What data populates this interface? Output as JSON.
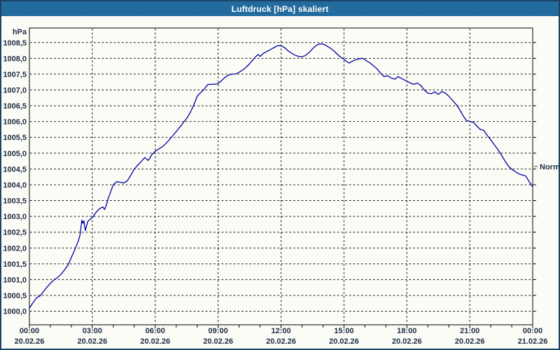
{
  "window": {
    "title": "Luftdruck [hPa] skaliert"
  },
  "colors": {
    "frame_border": "#1C4468",
    "titlebar_bg": "#2673A8",
    "titlebar_dot": "#1E5E8C",
    "titlebar_text": "#FFFFFF",
    "background": "#FCFCF7",
    "plot_border": "#000000",
    "gridline": "#000000",
    "line": "#0000A0",
    "label_text": "#1E2C44",
    "annotation_text": "#333333"
  },
  "chart_data": {
    "type": "line",
    "title": "Luftdruck [hPa] skaliert",
    "ylabel": "hPa",
    "xlabel": "",
    "grid": "dashed",
    "legend_position": "none",
    "ylim": [
      999.57,
      1008.96
    ],
    "x_minutes_range": [
      0,
      1440
    ],
    "y_ticks": [
      {
        "value": 1000.0,
        "label": "1000,0"
      },
      {
        "value": 1000.5,
        "label": "1000,5"
      },
      {
        "value": 1001.0,
        "label": "1001,0"
      },
      {
        "value": 1001.5,
        "label": "1001,5"
      },
      {
        "value": 1002.0,
        "label": "1002,0"
      },
      {
        "value": 1002.5,
        "label": "1002,5"
      },
      {
        "value": 1003.0,
        "label": "1003,0"
      },
      {
        "value": 1003.5,
        "label": "1003,5"
      },
      {
        "value": 1004.0,
        "label": "1004,0"
      },
      {
        "value": 1004.5,
        "label": "1004,5"
      },
      {
        "value": 1005.0,
        "label": "1005,0"
      },
      {
        "value": 1005.5,
        "label": "1005,5"
      },
      {
        "value": 1006.0,
        "label": "1006,0"
      },
      {
        "value": 1006.5,
        "label": "1006,5"
      },
      {
        "value": 1007.0,
        "label": "1007,0"
      },
      {
        "value": 1007.5,
        "label": "1007,5"
      },
      {
        "value": 1008.0,
        "label": "1008,0"
      },
      {
        "value": 1008.5,
        "label": "1008,5"
      }
    ],
    "x_ticks": [
      {
        "hour": 0,
        "time": "00:00",
        "date": "20.02.26"
      },
      {
        "hour": 3,
        "time": "03:00",
        "date": "20.02.26"
      },
      {
        "hour": 6,
        "time": "06:00",
        "date": "20.02.26"
      },
      {
        "hour": 9,
        "time": "09:00",
        "date": "20.02.26"
      },
      {
        "hour": 12,
        "time": "12:00",
        "date": "20.02.26"
      },
      {
        "hour": 15,
        "time": "15:00",
        "date": "20.02.26"
      },
      {
        "hour": 18,
        "time": "18:00",
        "date": "20.02.26"
      },
      {
        "hour": 21,
        "time": "21:00",
        "date": "20.02.26"
      },
      {
        "hour": 24,
        "time": "00:00",
        "date": "21.02.26"
      }
    ],
    "x_minor_tick_every_hours": 1,
    "annotations": [
      {
        "label": "Normal",
        "value": 1004.58,
        "side": "right"
      }
    ],
    "series": [
      {
        "name": "Luftdruck",
        "points_minutes_hpa": [
          [
            0,
            1000.1
          ],
          [
            10,
            1000.26
          ],
          [
            20,
            1000.42
          ],
          [
            30,
            1000.48
          ],
          [
            40,
            1000.62
          ],
          [
            50,
            1000.76
          ],
          [
            60,
            1000.88
          ],
          [
            70,
            1000.99
          ],
          [
            80,
            1001.06
          ],
          [
            90,
            1001.16
          ],
          [
            100,
            1001.3
          ],
          [
            110,
            1001.45
          ],
          [
            120,
            1001.7
          ],
          [
            130,
            1001.95
          ],
          [
            140,
            1002.22
          ],
          [
            145,
            1002.42
          ],
          [
            150,
            1002.88
          ],
          [
            153,
            1002.78
          ],
          [
            156,
            1002.86
          ],
          [
            160,
            1002.55
          ],
          [
            167,
            1002.84
          ],
          [
            175,
            1002.92
          ],
          [
            180,
            1002.96
          ],
          [
            190,
            1003.12
          ],
          [
            200,
            1003.24
          ],
          [
            210,
            1003.3
          ],
          [
            215,
            1003.22
          ],
          [
            220,
            1003.35
          ],
          [
            225,
            1003.55
          ],
          [
            235,
            1003.85
          ],
          [
            240,
            1004.0
          ],
          [
            250,
            1004.1
          ],
          [
            260,
            1004.08
          ],
          [
            270,
            1004.06
          ],
          [
            280,
            1004.12
          ],
          [
            290,
            1004.3
          ],
          [
            300,
            1004.5
          ],
          [
            310,
            1004.62
          ],
          [
            320,
            1004.74
          ],
          [
            330,
            1004.86
          ],
          [
            340,
            1004.77
          ],
          [
            350,
            1004.95
          ],
          [
            360,
            1005.06
          ],
          [
            370,
            1005.13
          ],
          [
            380,
            1005.2
          ],
          [
            390,
            1005.3
          ],
          [
            400,
            1005.42
          ],
          [
            410,
            1005.55
          ],
          [
            420,
            1005.68
          ],
          [
            430,
            1005.82
          ],
          [
            440,
            1005.96
          ],
          [
            450,
            1006.1
          ],
          [
            460,
            1006.28
          ],
          [
            470,
            1006.52
          ],
          [
            480,
            1006.8
          ],
          [
            490,
            1006.92
          ],
          [
            500,
            1007.02
          ],
          [
            505,
            1007.1
          ],
          [
            510,
            1007.17
          ],
          [
            520,
            1007.18
          ],
          [
            530,
            1007.18
          ],
          [
            540,
            1007.2
          ],
          [
            550,
            1007.3
          ],
          [
            560,
            1007.4
          ],
          [
            570,
            1007.47
          ],
          [
            580,
            1007.5
          ],
          [
            590,
            1007.5
          ],
          [
            600,
            1007.56
          ],
          [
            610,
            1007.63
          ],
          [
            620,
            1007.72
          ],
          [
            630,
            1007.83
          ],
          [
            640,
            1007.96
          ],
          [
            650,
            1008.08
          ],
          [
            655,
            1008.12
          ],
          [
            660,
            1008.06
          ],
          [
            670,
            1008.16
          ],
          [
            680,
            1008.22
          ],
          [
            690,
            1008.28
          ],
          [
            700,
            1008.34
          ],
          [
            710,
            1008.4
          ],
          [
            720,
            1008.4
          ],
          [
            730,
            1008.34
          ],
          [
            740,
            1008.24
          ],
          [
            750,
            1008.16
          ],
          [
            760,
            1008.1
          ],
          [
            770,
            1008.06
          ],
          [
            780,
            1008.05
          ],
          [
            790,
            1008.09
          ],
          [
            800,
            1008.18
          ],
          [
            810,
            1008.3
          ],
          [
            820,
            1008.4
          ],
          [
            830,
            1008.46
          ],
          [
            840,
            1008.45
          ],
          [
            850,
            1008.4
          ],
          [
            860,
            1008.33
          ],
          [
            870,
            1008.25
          ],
          [
            880,
            1008.14
          ],
          [
            890,
            1008.04
          ],
          [
            900,
            1007.97
          ],
          [
            910,
            1007.88
          ],
          [
            915,
            1007.85
          ],
          [
            925,
            1007.92
          ],
          [
            940,
            1007.98
          ],
          [
            955,
            1008.0
          ],
          [
            965,
            1007.92
          ],
          [
            975,
            1007.85
          ],
          [
            985,
            1007.76
          ],
          [
            995,
            1007.66
          ],
          [
            1005,
            1007.53
          ],
          [
            1015,
            1007.42
          ],
          [
            1025,
            1007.45
          ],
          [
            1035,
            1007.38
          ],
          [
            1045,
            1007.34
          ],
          [
            1055,
            1007.42
          ],
          [
            1065,
            1007.36
          ],
          [
            1080,
            1007.28
          ],
          [
            1090,
            1007.22
          ],
          [
            1100,
            1007.18
          ],
          [
            1110,
            1007.22
          ],
          [
            1120,
            1007.14
          ],
          [
            1130,
            1007.0
          ],
          [
            1140,
            1006.9
          ],
          [
            1150,
            1006.88
          ],
          [
            1160,
            1006.94
          ],
          [
            1170,
            1006.86
          ],
          [
            1180,
            1006.95
          ],
          [
            1190,
            1006.9
          ],
          [
            1200,
            1006.8
          ],
          [
            1210,
            1006.68
          ],
          [
            1220,
            1006.55
          ],
          [
            1230,
            1006.4
          ],
          [
            1240,
            1006.2
          ],
          [
            1250,
            1006.04
          ],
          [
            1260,
            1006.0
          ],
          [
            1270,
            1005.98
          ],
          [
            1280,
            1005.86
          ],
          [
            1290,
            1005.75
          ],
          [
            1300,
            1005.72
          ],
          [
            1310,
            1005.56
          ],
          [
            1320,
            1005.42
          ],
          [
            1330,
            1005.27
          ],
          [
            1340,
            1005.12
          ],
          [
            1350,
            1004.95
          ],
          [
            1360,
            1004.76
          ],
          [
            1370,
            1004.6
          ],
          [
            1380,
            1004.49
          ],
          [
            1390,
            1004.42
          ],
          [
            1400,
            1004.35
          ],
          [
            1410,
            1004.31
          ],
          [
            1420,
            1004.28
          ],
          [
            1430,
            1004.1
          ],
          [
            1440,
            1003.94
          ]
        ]
      }
    ]
  }
}
